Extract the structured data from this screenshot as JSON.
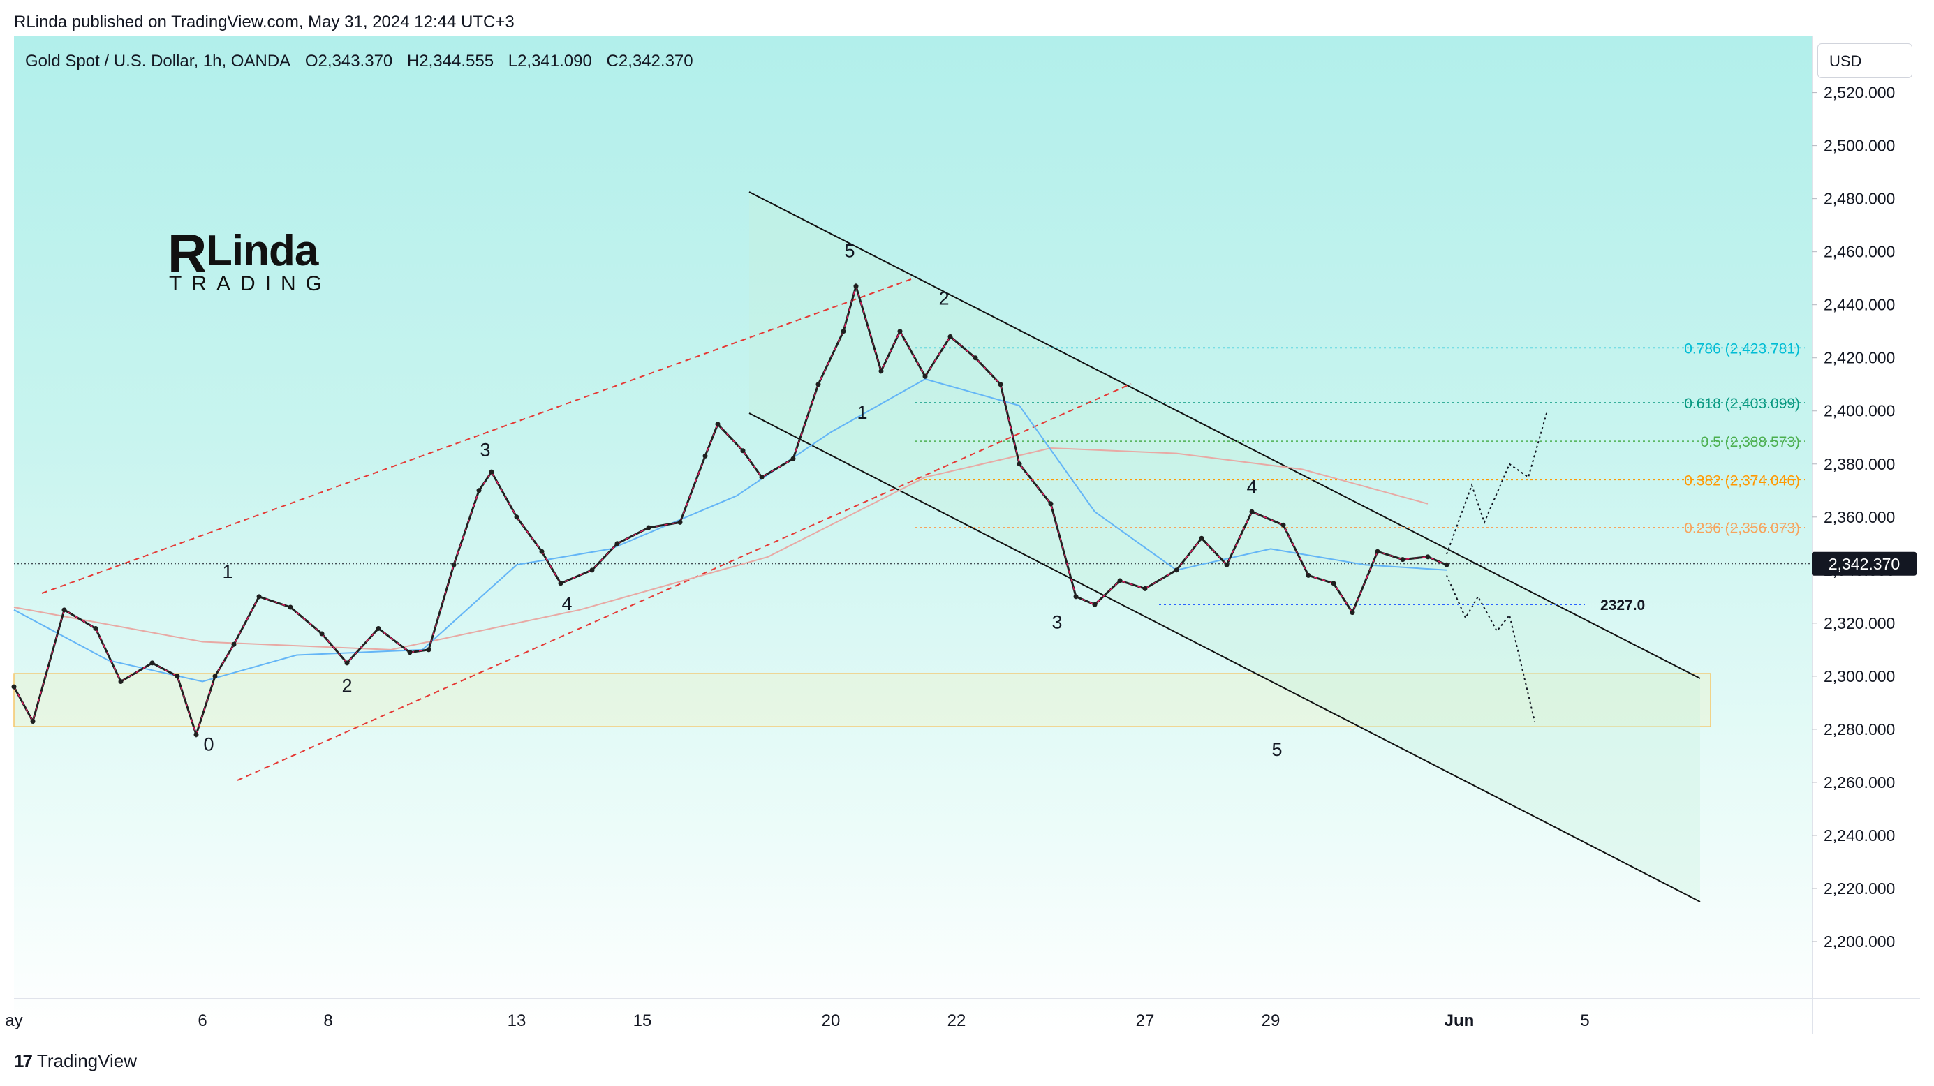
{
  "header": {
    "published": "RLinda published on TradingView.com, May 31, 2024 12:44 UTC+3",
    "symbol": "Gold Spot / U.S. Dollar, 1h, OANDA",
    "open": "O2,343.370",
    "high": "H2,344.555",
    "low": "L2,341.090",
    "close": "C2,342.370"
  },
  "currency_button": "USD",
  "logo": {
    "main": "Linda",
    "initial": "R",
    "sub": "TRADING"
  },
  "footer": {
    "brand": "TradingView",
    "mark": "17"
  },
  "chart_data": {
    "type": "line",
    "title": "Gold Spot / U.S. Dollar, 1h, OANDA",
    "ylim": [
      2190,
      2525
    ],
    "y_ticks": [
      "2,520.000",
      "2,500.000",
      "2,480.000",
      "2,460.000",
      "2,440.000",
      "2,420.000",
      "2,400.000",
      "2,380.000",
      "2,360.000",
      "2,340.000",
      "2,320.000",
      "2,300.000",
      "2,280.000",
      "2,260.000",
      "2,240.000",
      "2,220.000",
      "2,200.000"
    ],
    "y_tick_values": [
      2520,
      2500,
      2480,
      2460,
      2440,
      2420,
      2400,
      2380,
      2360,
      2340,
      2320,
      2300,
      2280,
      2260,
      2240,
      2220,
      2200
    ],
    "x_ticks": [
      "ay",
      "6",
      "8",
      "13",
      "15",
      "20",
      "22",
      "27",
      "29",
      "Jun",
      "5"
    ],
    "x_tick_index": [
      0,
      3,
      5,
      8,
      10,
      13,
      15,
      18,
      20,
      23,
      25
    ],
    "x_range_days": [
      0,
      27
    ],
    "current_price": 2342.37,
    "current_price_label": "2,342.370",
    "support_level": 2327.0,
    "support_label": "2327.0",
    "fibonacci": [
      {
        "label": "0.786 (2,423.781)",
        "value": 2423.781,
        "color": "#00bcd4"
      },
      {
        "label": "0.618 (2,403.099)",
        "value": 2403.099,
        "color": "#089981"
      },
      {
        "label": "0.5 (2,388.573)",
        "value": 2388.573,
        "color": "#4caf50"
      },
      {
        "label": "0.382 (2,374.046)",
        "value": 2374.046,
        "color": "#ff9800"
      },
      {
        "label": "0.236 (2,356.073)",
        "value": 2356.073,
        "color": "#f7a35c"
      }
    ],
    "demand_zone": [
      2281,
      2301
    ],
    "wave_labels": [
      {
        "text": "0",
        "day": 3.1,
        "price": 2272
      },
      {
        "text": "1",
        "day": 3.4,
        "price": 2337
      },
      {
        "text": "2",
        "day": 5.3,
        "price": 2294
      },
      {
        "text": "3",
        "day": 7.5,
        "price": 2383
      },
      {
        "text": "4",
        "day": 8.8,
        "price": 2325
      },
      {
        "text": "5",
        "day": 13.3,
        "price": 2458
      },
      {
        "text": "1",
        "day": 13.5,
        "price": 2397
      },
      {
        "text": "2",
        "day": 14.8,
        "price": 2440
      },
      {
        "text": "3",
        "day": 16.6,
        "price": 2318
      },
      {
        "text": "4",
        "day": 19.7,
        "price": 2369
      },
      {
        "text": "5",
        "day": 20.1,
        "price": 2270
      }
    ],
    "price_path": [
      {
        "day": 0.0,
        "price": 2296
      },
      {
        "day": 0.3,
        "price": 2283
      },
      {
        "day": 0.8,
        "price": 2325
      },
      {
        "day": 1.3,
        "price": 2318
      },
      {
        "day": 1.7,
        "price": 2298
      },
      {
        "day": 2.2,
        "price": 2305
      },
      {
        "day": 2.6,
        "price": 2300
      },
      {
        "day": 2.9,
        "price": 2278
      },
      {
        "day": 3.2,
        "price": 2300
      },
      {
        "day": 3.5,
        "price": 2312
      },
      {
        "day": 3.9,
        "price": 2330
      },
      {
        "day": 4.4,
        "price": 2326
      },
      {
        "day": 4.9,
        "price": 2316
      },
      {
        "day": 5.3,
        "price": 2305
      },
      {
        "day": 5.8,
        "price": 2318
      },
      {
        "day": 6.3,
        "price": 2309
      },
      {
        "day": 6.6,
        "price": 2310
      },
      {
        "day": 7.0,
        "price": 2342
      },
      {
        "day": 7.4,
        "price": 2370
      },
      {
        "day": 7.6,
        "price": 2377
      },
      {
        "day": 8.0,
        "price": 2360
      },
      {
        "day": 8.4,
        "price": 2347
      },
      {
        "day": 8.7,
        "price": 2335
      },
      {
        "day": 9.2,
        "price": 2340
      },
      {
        "day": 9.6,
        "price": 2350
      },
      {
        "day": 10.1,
        "price": 2356
      },
      {
        "day": 10.6,
        "price": 2358
      },
      {
        "day": 11.0,
        "price": 2383
      },
      {
        "day": 11.2,
        "price": 2395
      },
      {
        "day": 11.6,
        "price": 2385
      },
      {
        "day": 11.9,
        "price": 2375
      },
      {
        "day": 12.4,
        "price": 2382
      },
      {
        "day": 12.8,
        "price": 2410
      },
      {
        "day": 13.2,
        "price": 2430
      },
      {
        "day": 13.4,
        "price": 2447
      },
      {
        "day": 13.8,
        "price": 2415
      },
      {
        "day": 14.1,
        "price": 2430
      },
      {
        "day": 14.5,
        "price": 2413
      },
      {
        "day": 14.9,
        "price": 2428
      },
      {
        "day": 15.3,
        "price": 2420
      },
      {
        "day": 15.7,
        "price": 2410
      },
      {
        "day": 16.0,
        "price": 2380
      },
      {
        "day": 16.5,
        "price": 2365
      },
      {
        "day": 16.9,
        "price": 2330
      },
      {
        "day": 17.2,
        "price": 2327
      },
      {
        "day": 17.6,
        "price": 2336
      },
      {
        "day": 18.0,
        "price": 2333
      },
      {
        "day": 18.5,
        "price": 2340
      },
      {
        "day": 18.9,
        "price": 2352
      },
      {
        "day": 19.3,
        "price": 2342
      },
      {
        "day": 19.7,
        "price": 2362
      },
      {
        "day": 20.2,
        "price": 2357
      },
      {
        "day": 20.6,
        "price": 2338
      },
      {
        "day": 21.0,
        "price": 2335
      },
      {
        "day": 21.3,
        "price": 2324
      },
      {
        "day": 21.7,
        "price": 2347
      },
      {
        "day": 22.1,
        "price": 2344
      },
      {
        "day": 22.5,
        "price": 2345
      },
      {
        "day": 22.8,
        "price": 2342
      }
    ],
    "ma_fast": [
      {
        "day": 0.0,
        "price": 2325
      },
      {
        "day": 1.5,
        "price": 2306
      },
      {
        "day": 3.0,
        "price": 2298
      },
      {
        "day": 4.5,
        "price": 2308
      },
      {
        "day": 6.5,
        "price": 2310
      },
      {
        "day": 8.0,
        "price": 2342
      },
      {
        "day": 9.5,
        "price": 2348
      },
      {
        "day": 11.5,
        "price": 2368
      },
      {
        "day": 13.0,
        "price": 2392
      },
      {
        "day": 14.5,
        "price": 2412
      },
      {
        "day": 16.0,
        "price": 2402
      },
      {
        "day": 17.2,
        "price": 2362
      },
      {
        "day": 18.5,
        "price": 2340
      },
      {
        "day": 20.0,
        "price": 2348
      },
      {
        "day": 21.5,
        "price": 2342
      },
      {
        "day": 22.8,
        "price": 2340
      }
    ],
    "ma_slow": [
      {
        "day": 0.0,
        "price": 2326
      },
      {
        "day": 3.0,
        "price": 2313
      },
      {
        "day": 6.0,
        "price": 2310
      },
      {
        "day": 9.0,
        "price": 2325
      },
      {
        "day": 12.0,
        "price": 2345
      },
      {
        "day": 14.5,
        "price": 2375
      },
      {
        "day": 16.5,
        "price": 2386
      },
      {
        "day": 18.5,
        "price": 2384
      },
      {
        "day": 20.5,
        "price": 2378
      },
      {
        "day": 22.5,
        "price": 2365
      }
    ],
    "projection_path": [
      {
        "day": 22.8,
        "price": 2346
      },
      {
        "day": 23.2,
        "price": 2372
      },
      {
        "day": 23.4,
        "price": 2358
      },
      {
        "day": 23.8,
        "price": 2380
      },
      {
        "day": 24.1,
        "price": 2375
      },
      {
        "day": 24.4,
        "price": 2400
      }
    ],
    "projection_down": [
      {
        "day": 22.8,
        "price": 2338
      },
      {
        "day": 23.1,
        "price": 2322
      },
      {
        "day": 23.3,
        "price": 2330
      },
      {
        "day": 23.6,
        "price": 2317
      },
      {
        "day": 23.8,
        "price": 2323
      },
      {
        "day": 24.2,
        "price": 2283
      }
    ]
  }
}
